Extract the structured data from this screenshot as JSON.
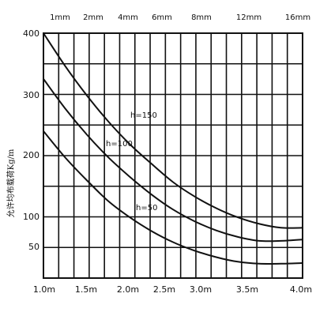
{
  "chart_data": {
    "type": "line",
    "title": "",
    "xlabel": "",
    "ylabel": "允许均布载荷Kg/m",
    "x_bottom_ticks": [
      "1.0m",
      "1.5m",
      "2.0m",
      "2.5m",
      "3.0m",
      "3.5m",
      "4.0m"
    ],
    "x_top_ticks": [
      "1mm",
      "2mm",
      "4mm",
      "6mm",
      "8mm",
      "12mm",
      "16mm"
    ],
    "y_ticks": [
      "400",
      "300",
      "200",
      "100",
      "50"
    ],
    "xlim": [
      1.0,
      4.0
    ],
    "ylim": [
      25,
      400
    ],
    "grid": true,
    "series": [
      {
        "name": "h=150",
        "x": [
          1.0,
          1.25,
          1.5,
          1.75,
          2.0,
          2.25,
          2.5,
          2.75,
          3.0,
          3.25,
          3.5,
          3.75,
          4.0
        ],
        "y": [
          400,
          350,
          305,
          265,
          230,
          200,
          172,
          150,
          132,
          118,
          108,
          102,
          102
        ]
      },
      {
        "name": "h=100",
        "x": [
          1.0,
          1.25,
          1.5,
          1.75,
          2.0,
          2.25,
          2.5,
          2.75,
          3.0,
          3.25,
          3.5,
          3.75,
          4.0
        ],
        "y": [
          330,
          285,
          245,
          210,
          180,
          153,
          130,
          112,
          98,
          88,
          82,
          82,
          84
        ]
      },
      {
        "name": "h=50",
        "x": [
          1.0,
          1.25,
          1.5,
          1.75,
          2.0,
          2.25,
          2.5,
          2.75,
          3.0,
          3.25,
          3.5,
          3.75,
          4.0
        ],
        "y": [
          250,
          210,
          175,
          143,
          118,
          97,
          80,
          67,
          57,
          50,
          47,
          47,
          48
        ]
      }
    ]
  }
}
